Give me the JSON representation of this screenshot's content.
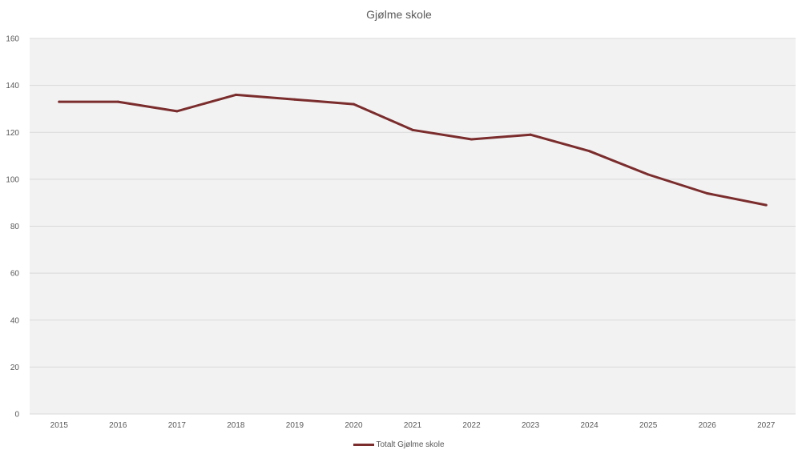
{
  "chart_data": {
    "type": "line",
    "title": "Gjølme skole",
    "xlabel": "",
    "ylabel": "",
    "categories": [
      "2015",
      "2016",
      "2017",
      "2018",
      "2019",
      "2020",
      "2021",
      "2022",
      "2023",
      "2024",
      "2025",
      "2026",
      "2027"
    ],
    "series": [
      {
        "name": "Totalt Gjølme skole",
        "values": [
          133,
          133,
          129,
          136,
          134,
          132,
          121,
          117,
          119,
          112,
          102,
          94,
          89
        ],
        "color": "#7b2c2c"
      }
    ],
    "ylim": [
      0,
      160
    ],
    "yticks": [
      0,
      20,
      40,
      60,
      80,
      100,
      120,
      140,
      160
    ],
    "grid": true,
    "plot_background": "#f2f2f2",
    "legend_position": "bottom"
  }
}
